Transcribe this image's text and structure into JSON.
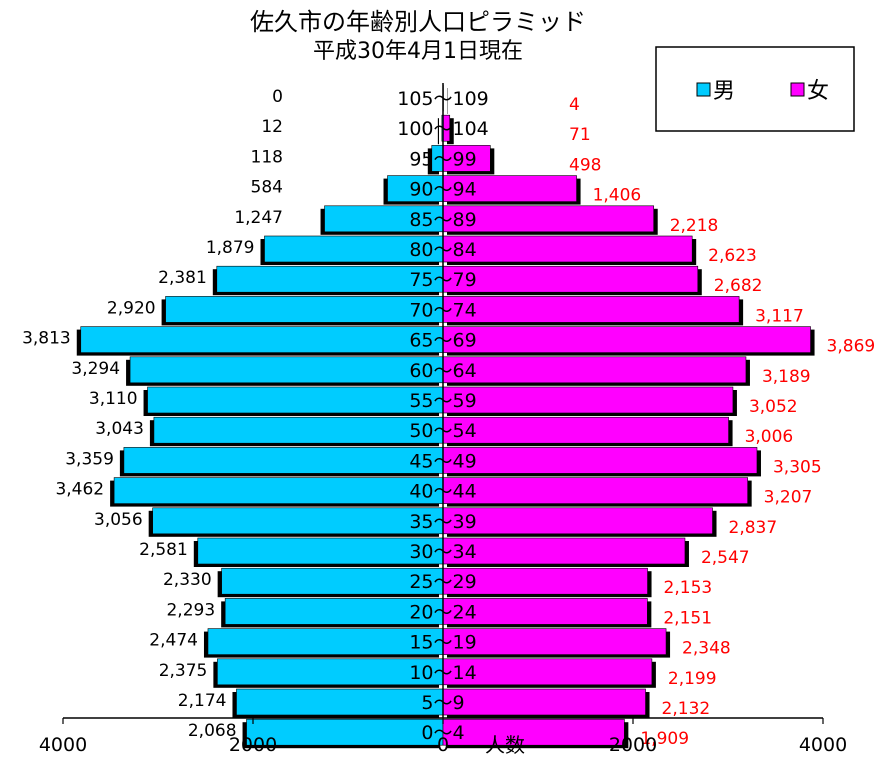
{
  "chart_data": {
    "type": "bar",
    "orientation": "horizontal-pyramid",
    "title": "佐久市の年齢別人口ピラミッド",
    "subtitle": "平成30年4月1日現在",
    "xlabel": "人数",
    "xlim": [
      -4000,
      4000
    ],
    "x_ticks": [
      {
        "value": -4000,
        "label": "4000"
      },
      {
        "value": -2000,
        "label": "2000"
      },
      {
        "value": 0,
        "label": "0"
      },
      {
        "value": 2000,
        "label": "2000"
      },
      {
        "value": 4000,
        "label": "4000"
      }
    ],
    "categories": [
      "105～109",
      "100～104",
      "95～99",
      "90～94",
      "85～89",
      "80～84",
      "75～79",
      "70～74",
      "65～69",
      "60～64",
      "55～59",
      "50～54",
      "45～49",
      "40～44",
      "35～39",
      "30～34",
      "25～29",
      "20～24",
      "15～19",
      "10～14",
      "5～9",
      "0～4"
    ],
    "series": [
      {
        "name": "男",
        "color": "#00ccff",
        "values": [
          0,
          12,
          118,
          584,
          1247,
          1879,
          2381,
          2920,
          3813,
          3294,
          3110,
          3043,
          3359,
          3462,
          3056,
          2581,
          2330,
          2293,
          2474,
          2375,
          2174,
          2068
        ],
        "labels": [
          "0",
          "12",
          "118",
          "584",
          "1,247",
          "1,879",
          "2,381",
          "2,920",
          "3,813",
          "3,294",
          "3,110",
          "3,043",
          "3,359",
          "3,462",
          "3,056",
          "2,581",
          "2,330",
          "2,293",
          "2,474",
          "2,375",
          "2,174",
          "2,068"
        ]
      },
      {
        "name": "女",
        "color": "#ff00ff",
        "values": [
          4,
          71,
          498,
          1406,
          2218,
          2623,
          2682,
          3117,
          3869,
          3189,
          3052,
          3006,
          3305,
          3207,
          2837,
          2547,
          2153,
          2151,
          2348,
          2199,
          2132,
          1909
        ],
        "labels": [
          "4",
          "71",
          "498",
          "1,406",
          "2,218",
          "2,623",
          "2,682",
          "3,117",
          "3,869",
          "3,189",
          "3,052",
          "3,006",
          "3,305",
          "3,207",
          "2,837",
          "2,547",
          "2,153",
          "2,151",
          "2,348",
          "2,199",
          "2,132",
          "1,909"
        ]
      }
    ],
    "female_label_color": "#ff0000",
    "legend_position": "top-right",
    "grid": false
  }
}
